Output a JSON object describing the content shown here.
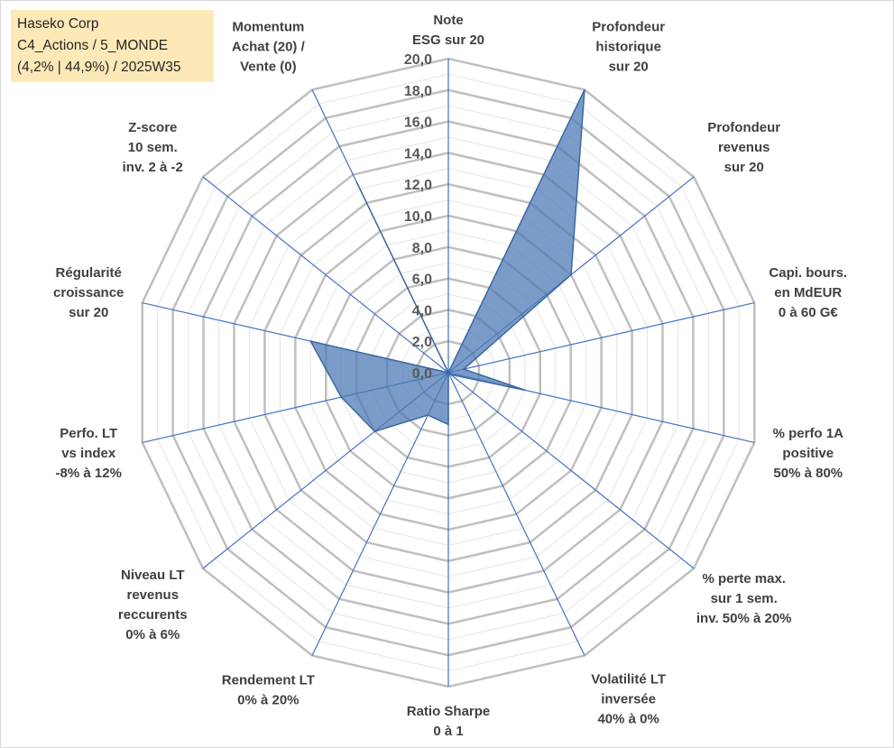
{
  "title_box": {
    "line1": "Haseko Corp",
    "line2": "C4_Actions / 5_MONDE",
    "line3": "(4,2% | 44,9%) / 2025W35"
  },
  "chart_data": {
    "type": "radar",
    "rmin": 0,
    "rmax": 20,
    "major_step": 2,
    "minor_step": 1,
    "tick_labels": [
      "0,0",
      "2,0",
      "4,0",
      "6,0",
      "8,0",
      "10,0",
      "12,0",
      "14,0",
      "16,0",
      "18,0",
      "20,0"
    ],
    "axes": [
      [
        "Note",
        "ESG sur 20"
      ],
      [
        "Profondeur",
        "historique",
        "sur 20"
      ],
      [
        "Profondeur",
        "revenus",
        "sur 20"
      ],
      [
        "Capi. bours.",
        "en MdEUR",
        "0 à 60 G€"
      ],
      [
        "% perfo 1A",
        "positive",
        "50% à 80%"
      ],
      [
        "% perte max.",
        "sur 1 sem.",
        "inv. 50% à 20%"
      ],
      [
        "Volatilité LT",
        "inversée",
        "40% à 0%"
      ],
      [
        "Ratio Sharpe",
        "0 à 1"
      ],
      [
        "Rendement LT",
        "0% à 20%"
      ],
      [
        "Niveau LT",
        "revenus",
        "reccurents",
        "0% à 6%"
      ],
      [
        "Perfo. LT",
        "vs index",
        "-8% à 12%"
      ],
      [
        "Régularité",
        "croissance",
        "sur 20"
      ],
      [
        "Z-score",
        "10 sem.",
        "inv. 2 à -2"
      ],
      [
        "Momentum",
        "Achat (20) /",
        "Vente (0)"
      ]
    ],
    "values": [
      0.0,
      20.0,
      10.0,
      1.0,
      5.0,
      0.2,
      0.0,
      3.3,
      3.0,
      6.0,
      7.0,
      9.0,
      0.0,
      13.5
    ],
    "fill_color": "#4f7bb5",
    "fill_opacity": 0.75,
    "grid_major_color": "#bfbfbf",
    "grid_minor_color": "#e4e4e4",
    "spoke_color": "#4472c4",
    "grid": true,
    "legend": "none"
  }
}
